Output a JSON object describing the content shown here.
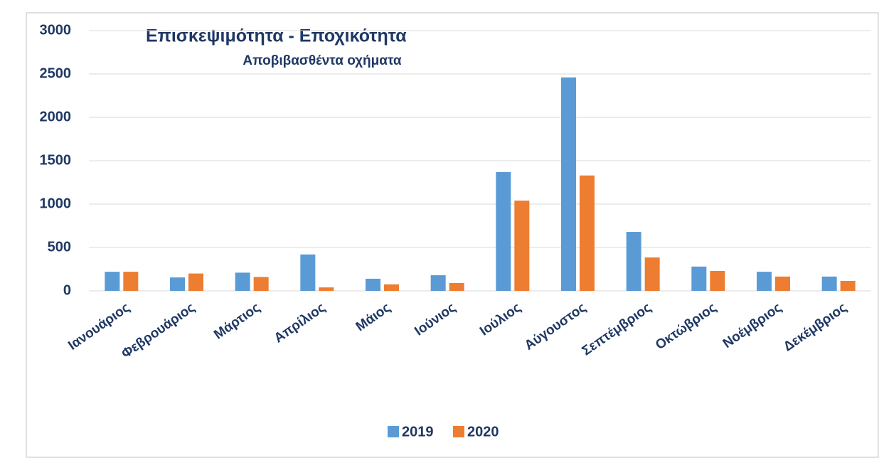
{
  "chart_data": {
    "type": "bar",
    "title": "Επισκεψιμότητα - Εποχικότητα",
    "subtitle": "Αποβιβασθέντα  οχήματα",
    "categories": [
      "Ιανουάριος",
      "Φεβρουάριος",
      "Μάρτιος",
      "Απρίλιος",
      "Μάιος",
      "Ιούνιος",
      "Ιούλιος",
      "Αύγουστος",
      "Σεπτέμβριος",
      "Οκτώβριος",
      "Νοέμβριος",
      "Δεκέμβριος"
    ],
    "series": [
      {
        "name": "2019",
        "color": "#5b9bd5",
        "values": [
          220,
          155,
          210,
          420,
          140,
          180,
          1370,
          2460,
          680,
          280,
          220,
          165
        ]
      },
      {
        "name": "2020",
        "color": "#ed7d31",
        "values": [
          220,
          200,
          160,
          40,
          75,
          90,
          1040,
          1330,
          385,
          230,
          165,
          115
        ]
      }
    ],
    "ylim": [
      0,
      3000
    ],
    "yticks": [
      0,
      500,
      1000,
      1500,
      2000,
      2500,
      3000
    ],
    "grid": true,
    "legend": "bottom"
  }
}
